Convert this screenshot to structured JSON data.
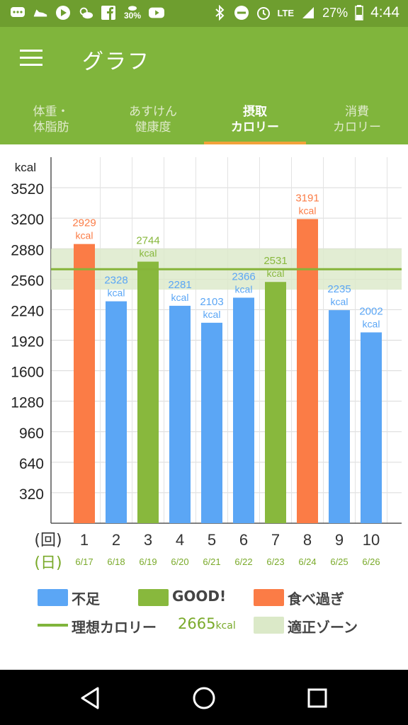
{
  "status_bar": {
    "time": "4:44",
    "battery": "27%",
    "network": "LTE",
    "weather_pct": "30%",
    "icons": [
      "messages-icon",
      "shoe-icon",
      "play-icon",
      "weather-icon",
      "facebook-icon",
      "rain-icon",
      "youtube-icon",
      "bluetooth-icon",
      "do-not-disturb-icon",
      "alarm-icon",
      "signal-icon",
      "battery-icon"
    ]
  },
  "app_bar": {
    "title": "グラフ"
  },
  "tabs": [
    {
      "line1": "体重・",
      "line2": "体脂肪",
      "active": false
    },
    {
      "line1": "あすけん",
      "line2": "健康度",
      "active": false
    },
    {
      "line1": "摂取",
      "line2": "カロリー",
      "active": true
    },
    {
      "line1": "消費",
      "line2": "カロリー",
      "active": false
    }
  ],
  "chart_data": {
    "type": "bar",
    "ylabel": "kcal",
    "y_ticks": [
      320,
      640,
      960,
      1280,
      1600,
      1920,
      2240,
      2560,
      2880,
      3200,
      3520
    ],
    "ylim": [
      0,
      3840
    ],
    "x_prefix_count": "(回)",
    "x_prefix_day": "(日)",
    "categories": [
      "1",
      "2",
      "3",
      "4",
      "5",
      "6",
      "7",
      "8",
      "9",
      "10"
    ],
    "dates": [
      "6/17",
      "6/18",
      "6/19",
      "6/20",
      "6/21",
      "6/22",
      "6/23",
      "6/24",
      "6/25",
      "6/26"
    ],
    "values": [
      2929,
      2328,
      2744,
      2281,
      2103,
      2366,
      2531,
      3191,
      2235,
      2002
    ],
    "status": [
      "over",
      "under",
      "good",
      "under",
      "under",
      "under",
      "good",
      "over",
      "under",
      "under"
    ],
    "value_unit": "kcal",
    "ideal_line": 2665,
    "ideal_zone": [
      2450,
      2880
    ],
    "grid": true
  },
  "colors": {
    "under": "#5ba6f5",
    "good": "#88b83d",
    "over": "#fb7c46",
    "zone": "#dbe9c8",
    "ideal": "#86b43a",
    "app_bar": "#80b53c",
    "status_bar": "#6e9e2f"
  },
  "legend": {
    "under": "不足",
    "good": "GOOD!",
    "over": "食べ過ぎ",
    "ideal": "理想カロリー",
    "ideal_value": "2665",
    "ideal_unit": "kcal",
    "zone": "適正ゾーン"
  },
  "nav": {
    "buttons": [
      "back-icon",
      "home-icon",
      "recents-icon"
    ]
  }
}
